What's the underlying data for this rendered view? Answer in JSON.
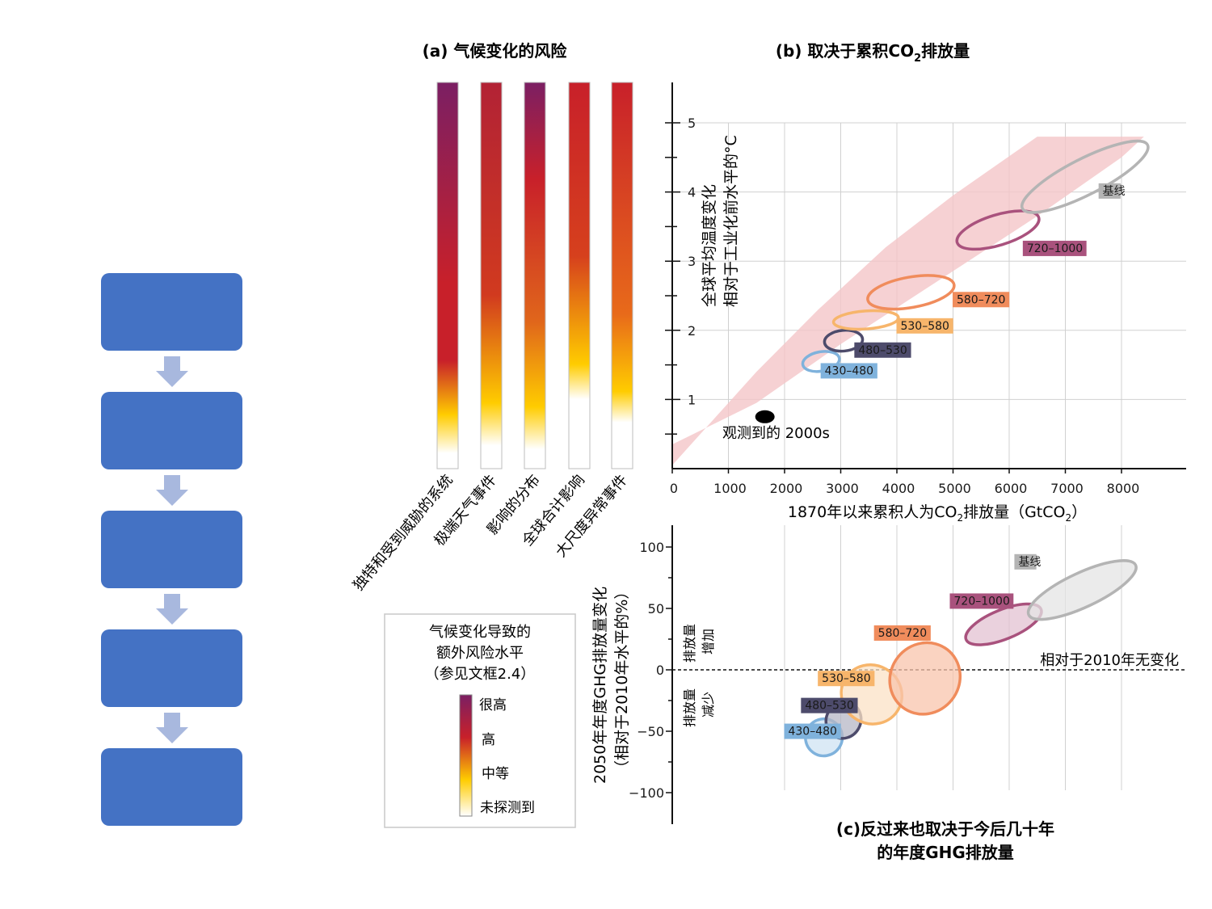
{
  "flowchart": {
    "box_count": 5,
    "box_color": "#4472c4",
    "arrow_color": "#a8b8de"
  },
  "panel_a": {
    "title": "(a) 气候变化的风险",
    "bars": [
      {
        "label": "独特和受到威胁的系统",
        "levels": [
          "未探测到",
          "中等",
          "高",
          "很高"
        ]
      },
      {
        "label": "极端天气事件",
        "levels": [
          "未探测到",
          "中等",
          "高",
          "很高"
        ]
      },
      {
        "label": "影响的分布",
        "levels": [
          "未探测到",
          "中等",
          "高",
          "很高"
        ]
      },
      {
        "label": "全球合计影响",
        "levels": [
          "未探测到",
          "中等",
          "高"
        ]
      },
      {
        "label": "大尺度异常事件",
        "levels": [
          "未探测到",
          "中等",
          "高"
        ]
      }
    ],
    "legend": {
      "title_lines": [
        "气候变化导致的",
        "额外风险水平",
        "（参见文框2.4）"
      ],
      "levels": [
        {
          "label": "很高",
          "color": "#7b1f63"
        },
        {
          "label": "高",
          "color": "#c8202a"
        },
        {
          "label": "中等",
          "color": "#ffcc00"
        },
        {
          "label": "未探测到",
          "color": "#ffffff"
        }
      ]
    }
  },
  "chart_data": [
    {
      "type": "scatter",
      "title_main": "(b) 取决于累积CO",
      "title_sub": "2",
      "title_end": "排放量",
      "ylabel_lines": [
        "全球平均温度变化",
        "相对于工业化前水平的°C"
      ],
      "xlabel_main": "1870年以来累积人为CO",
      "xlabel_sub": "2",
      "xlabel_mid": "排放量（GtCO",
      "xlabel_sub2": "2",
      "xlabel_end": "）",
      "xlim": [
        0,
        9200
      ],
      "ylim": [
        0,
        5.5
      ],
      "x_ticks": [
        0,
        1000,
        2000,
        3000,
        4000,
        5000,
        6000,
        7000,
        8000
      ],
      "y_ticks": [
        1,
        2,
        3,
        4,
        5
      ],
      "observed": {
        "label": "观测到的 2000s",
        "x": 1650,
        "y": 0.75
      },
      "series": [
        {
          "name": "430–480",
          "cx": 2650,
          "cy": 1.55,
          "rx": 330,
          "ry": 0.14,
          "angle": 10,
          "color": "#7fb2dc",
          "label_x": 2700,
          "label_y": 1.35
        },
        {
          "name": "480–530",
          "cx": 3050,
          "cy": 1.85,
          "rx": 340,
          "ry": 0.15,
          "angle": 5,
          "color": "#4d4b6b",
          "label_x": 3300,
          "label_y": 1.65
        },
        {
          "name": "530–580",
          "cx": 3450,
          "cy": 2.15,
          "rx": 580,
          "ry": 0.13,
          "angle": 4,
          "color": "#f7b56b",
          "label_x": 4050,
          "label_y": 2.0
        },
        {
          "name": "580–720",
          "cx": 4250,
          "cy": 2.55,
          "rx": 780,
          "ry": 0.22,
          "angle": 10,
          "color": "#f08c5c",
          "label_x": 5050,
          "label_y": 2.38
        },
        {
          "name": "720–1000",
          "cx": 5800,
          "cy": 3.45,
          "rx": 760,
          "ry": 0.22,
          "angle": 17,
          "color": "#a9527d",
          "label_x": 6300,
          "label_y": 3.12
        },
        {
          "name": "基线",
          "cx": 7350,
          "cy": 4.22,
          "rx": 1250,
          "ry": 0.26,
          "angle": 27,
          "color": "#b4b4b4",
          "label_x": 7650,
          "label_y": 3.95
        }
      ]
    },
    {
      "type": "scatter",
      "title_lines": [
        "(c)反过来也取决于今后几十年",
        "的年度GHG排放量"
      ],
      "ylabel_lines": [
        "2050年年度GHG排放量变化",
        "（相对于2010年水平的%）"
      ],
      "ylim": [
        -125,
        120
      ],
      "y_ticks": [
        100,
        50,
        0,
        -50,
        -100
      ],
      "reference_label": "相对于2010年无变化",
      "side_label_up": [
        "排放量",
        "增加"
      ],
      "side_label_down": [
        "排放量",
        "减少"
      ],
      "series": [
        {
          "name": "430–480",
          "cx": 2700,
          "cy": -55,
          "rx": 330,
          "ry": 15,
          "angle": -55,
          "color": "#7fb2dc",
          "label_x": 2050,
          "label_y": -53
        },
        {
          "name": "480–530",
          "cx": 3050,
          "cy": -41,
          "rx": 330,
          "ry": 14,
          "angle": -60,
          "color": "#4d4b6b",
          "label_x": 2350,
          "label_y": -32
        },
        {
          "name": "530–580",
          "cx": 3550,
          "cy": -20,
          "rx": 520,
          "ry": 25,
          "angle": -60,
          "color": "#f7b56b",
          "label_x": 2650,
          "label_y": -10
        },
        {
          "name": "580–720",
          "cx": 4500,
          "cy": -7,
          "rx": 650,
          "ry": 28,
          "angle": -52,
          "color": "#f08c5c",
          "label_x": 3650,
          "label_y": 27
        },
        {
          "name": "720–1000",
          "cx": 5900,
          "cy": 37,
          "rx": 720,
          "ry": 12,
          "angle": -22,
          "color": "#a9527d",
          "label_x": 5000,
          "label_y": 53
        },
        {
          "name": "基线",
          "cx": 7300,
          "cy": 65,
          "rx": 1050,
          "ry": 14,
          "angle": -25,
          "color": "#b4b4b4",
          "label_x": 6150,
          "label_y": 85
        }
      ]
    }
  ]
}
